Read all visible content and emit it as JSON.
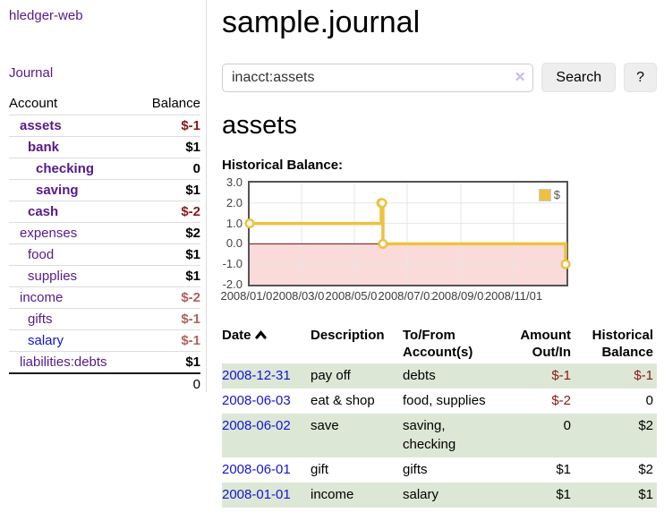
{
  "app": {
    "brand": "hledger-web",
    "nav": {
      "journal": "Journal"
    }
  },
  "sidebar": {
    "header": {
      "account": "Account",
      "balance": "Balance"
    },
    "accounts": [
      {
        "name": "assets",
        "indent": 1,
        "bold": true,
        "name_color": "purple",
        "balance": "$-1",
        "balance_color": "negative-strong"
      },
      {
        "name": "bank",
        "indent": 2,
        "bold": true,
        "name_color": "purple",
        "balance": "$1",
        "balance_color": "default"
      },
      {
        "name": "checking",
        "indent": 3,
        "bold": true,
        "name_color": "purple",
        "balance": "0",
        "balance_color": "default"
      },
      {
        "name": "saving",
        "indent": 3,
        "bold": true,
        "name_color": "purple",
        "balance": "$1",
        "balance_color": "default"
      },
      {
        "name": "cash",
        "indent": 2,
        "bold": true,
        "name_color": "purple",
        "balance": "$-2",
        "balance_color": "negative-strong"
      },
      {
        "name": "expenses",
        "indent": 1,
        "bold": false,
        "name_color": "purple",
        "balance": "$2",
        "balance_color": "default"
      },
      {
        "name": "food",
        "indent": 2,
        "bold": false,
        "name_color": "purple",
        "balance": "$1",
        "balance_color": "default"
      },
      {
        "name": "supplies",
        "indent": 2,
        "bold": false,
        "name_color": "purple",
        "balance": "$1",
        "balance_color": "default"
      },
      {
        "name": "income",
        "indent": 1,
        "bold": false,
        "name_color": "purple",
        "balance": "$-2",
        "balance_color": "negative-soft"
      },
      {
        "name": "gifts",
        "indent": 2,
        "bold": false,
        "name_color": "purple",
        "balance": "$-1",
        "balance_color": "negative-soft"
      },
      {
        "name": "salary",
        "indent": 2,
        "bold": false,
        "name_color": "blue",
        "balance": "$-1",
        "balance_color": "negative-soft"
      },
      {
        "name": "liabilities:debts",
        "indent": 1,
        "bold": false,
        "name_color": "purple",
        "balance": "$1",
        "balance_color": "default"
      }
    ],
    "total": "0"
  },
  "main": {
    "title": "sample.journal",
    "search": {
      "value": "inacct:assets",
      "clear_icon": "✕",
      "button_label": "Search",
      "help_label": "?"
    },
    "account_heading": "assets",
    "chart_label": "Historical Balance:"
  },
  "chart_data": {
    "type": "line",
    "step": true,
    "title": "Historical Balance:",
    "legend": "$",
    "legend_position": "top-right",
    "grid": true,
    "negative_region_shaded": true,
    "ylim": [
      -2,
      3
    ],
    "xlim": [
      "2008-01-01",
      "2009-01-01"
    ],
    "y_ticks": [
      "3.0",
      "2.0",
      "1.0",
      "0.0",
      "-1.0",
      "-2.0"
    ],
    "x_ticks": [
      "2008/01/01",
      "2008/03/01",
      "2008/05/01",
      "2008/07/01",
      "2008/09/01",
      "2008/11/01"
    ],
    "series": [
      {
        "name": "$",
        "x": [
          "2008-01-01",
          "2008-06-01",
          "2008-06-02",
          "2008-06-03",
          "2008-12-31"
        ],
        "values": [
          1,
          2,
          2,
          0,
          -1
        ]
      }
    ]
  },
  "register": {
    "sort": {
      "column": "Date",
      "direction": "ascending"
    },
    "columns": [
      {
        "lines": [
          "Date"
        ],
        "align": "left",
        "sorted": true
      },
      {
        "lines": [
          "Description"
        ],
        "align": "left",
        "sorted": false
      },
      {
        "lines": [
          "To/From",
          "Account(s)"
        ],
        "align": "left",
        "sorted": false
      },
      {
        "lines": [
          "Amount",
          "Out/In"
        ],
        "align": "right",
        "sorted": false
      },
      {
        "lines": [
          "Historical",
          "Balance"
        ],
        "align": "right",
        "sorted": false
      }
    ],
    "rows": [
      {
        "date": "2008-12-31",
        "description": "pay off",
        "accounts": [
          "debts"
        ],
        "amount": "$-1",
        "amount_negative": true,
        "balance": "$-1",
        "balance_negative": true,
        "highlight": true
      },
      {
        "date": "2008-06-03",
        "description": "eat & shop",
        "accounts": [
          "food, supplies"
        ],
        "amount": "$-2",
        "amount_negative": true,
        "balance": "0",
        "balance_negative": false,
        "highlight": false
      },
      {
        "date": "2008-06-02",
        "description": "save",
        "accounts": [
          "saving,",
          "checking"
        ],
        "amount": "0",
        "amount_negative": false,
        "balance": "$2",
        "balance_negative": false,
        "highlight": true
      },
      {
        "date": "2008-06-01",
        "description": "gift",
        "accounts": [
          "gifts"
        ],
        "amount": "$1",
        "amount_negative": false,
        "balance": "$2",
        "balance_negative": false,
        "highlight": false
      },
      {
        "date": "2008-01-01",
        "description": "income",
        "accounts": [
          "salary"
        ],
        "amount": "$1",
        "amount_negative": false,
        "balance": "$1",
        "balance_negative": false,
        "highlight": true
      }
    ]
  },
  "colors": {
    "link_purple": "#551a8b",
    "link_blue": "#1414d4",
    "negative_strong": "#8b1717",
    "negative_soft": "#b06060",
    "row_highlight": "#dde7d6",
    "series_gold": "#edc240",
    "negative_region": "#fbdada",
    "zero_line": "#800000",
    "grid_line": "#e6e6e6",
    "plot_border": "#545454"
  }
}
